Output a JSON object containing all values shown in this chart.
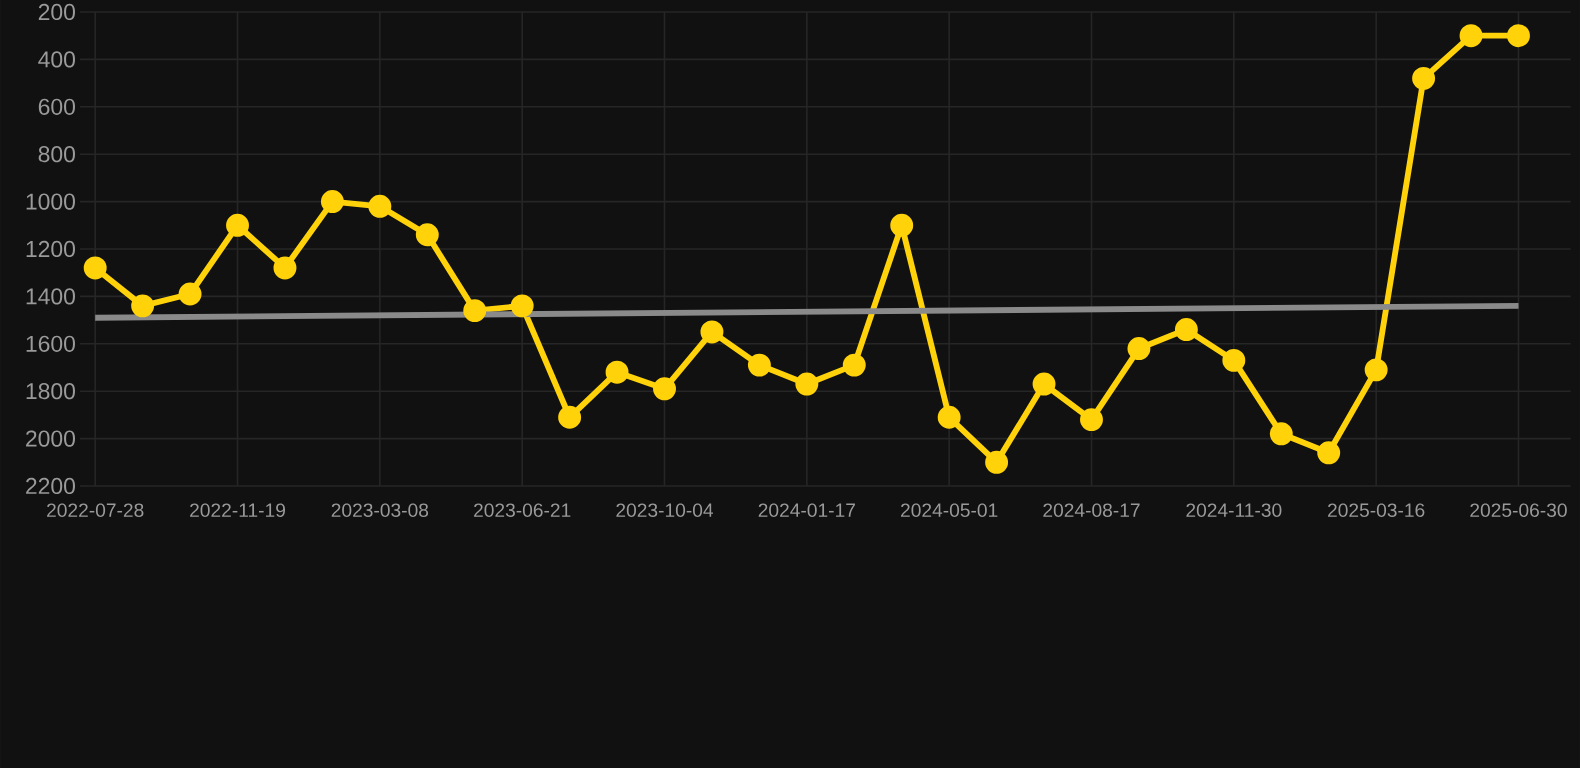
{
  "chart_data": {
    "type": "line",
    "categories": [
      "2022-07-28",
      null,
      null,
      "2022-11-19",
      null,
      null,
      "2023-03-08",
      null,
      null,
      "2023-06-21",
      null,
      null,
      "2023-10-04",
      null,
      null,
      "2024-01-17",
      null,
      null,
      "2024-05-01",
      null,
      null,
      "2024-08-17",
      null,
      null,
      "2024-11-30",
      null,
      null,
      "2025-03-16",
      null,
      null,
      "2025-06-30"
    ],
    "series": [
      {
        "color": "#ffd20a",
        "marker": "circle",
        "values": [
          1280,
          1440,
          1390,
          1100,
          1280,
          1000,
          1020,
          1140,
          1460,
          1440,
          1910,
          1720,
          1790,
          1550,
          1690,
          1770,
          1690,
          1100,
          1910,
          2100,
          1770,
          1920,
          1620,
          1540,
          1670,
          1980,
          2060,
          1710,
          480,
          300,
          300
        ]
      },
      {
        "type": "line",
        "color": "#8a8a8a",
        "marker": "none",
        "values": [
          1490,
          null,
          null,
          null,
          null,
          null,
          null,
          null,
          null,
          null,
          null,
          null,
          null,
          null,
          null,
          null,
          null,
          null,
          null,
          null,
          null,
          null,
          null,
          null,
          null,
          null,
          null,
          null,
          null,
          null,
          1440
        ]
      }
    ],
    "ylim": [
      2200,
      200
    ],
    "yticks": [
      200,
      400,
      600,
      800,
      1000,
      1200,
      1400,
      1600,
      1800,
      2000,
      2200
    ],
    "grid": true,
    "line_style": "solid"
  }
}
